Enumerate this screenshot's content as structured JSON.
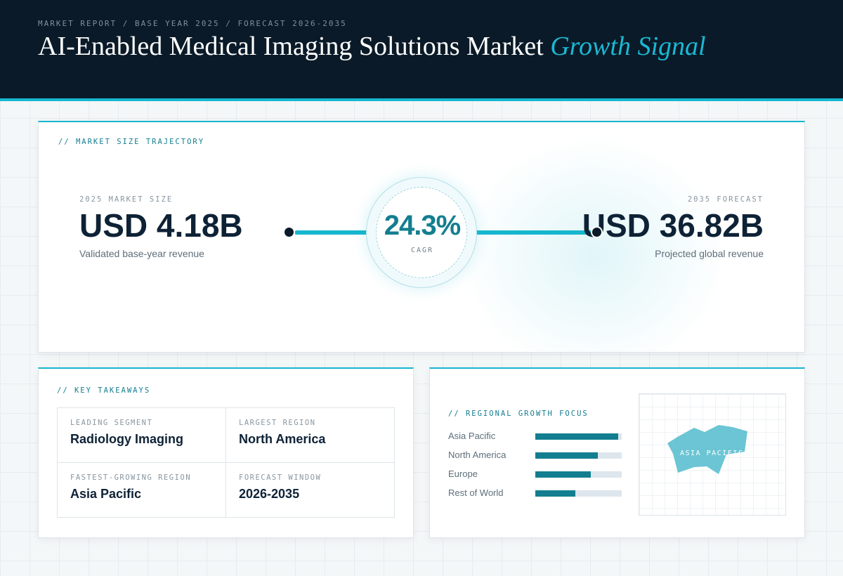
{
  "header": {
    "kicker": "MARKET REPORT / BASE YEAR 2025 / FORECAST 2026-2035",
    "title_main": "AI-Enabled Medical Imaging Solutions Market",
    "title_accent": "Growth Signal"
  },
  "trajectory": {
    "section_label": "// MARKET SIZE TRAJECTORY",
    "start": {
      "label": "2025 MARKET SIZE",
      "value": "USD 4.18B",
      "note": "Validated base-year revenue"
    },
    "cagr": {
      "value": "24.3%",
      "label": "CAGR"
    },
    "end": {
      "label": "2035 FORECAST",
      "value": "USD 36.82B",
      "note": "Projected global revenue"
    }
  },
  "takeaways": {
    "section_label": "// KEY TAKEAWAYS",
    "items": [
      {
        "label": "LEADING SEGMENT",
        "value": "Radiology Imaging"
      },
      {
        "label": "LARGEST REGION",
        "value": "North America"
      },
      {
        "label": "FASTEST-GROWING REGION",
        "value": "Asia Pacific"
      },
      {
        "label": "FORECAST WINDOW",
        "value": "2026-2035"
      }
    ]
  },
  "regional": {
    "section_label": "// REGIONAL GROWTH FOCUS",
    "regions": [
      {
        "name": "Asia Pacific",
        "level": 0.96
      },
      {
        "name": "North America",
        "level": 0.72
      },
      {
        "name": "Europe",
        "level": 0.64
      },
      {
        "name": "Rest of World",
        "level": 0.46
      }
    ],
    "map_label": "ASIA PACIFIC"
  },
  "colors": {
    "header_bg": "#0a1a28",
    "accent": "#16b6cf",
    "accent_dark": "#137e90",
    "text_dark": "#0e2236"
  }
}
